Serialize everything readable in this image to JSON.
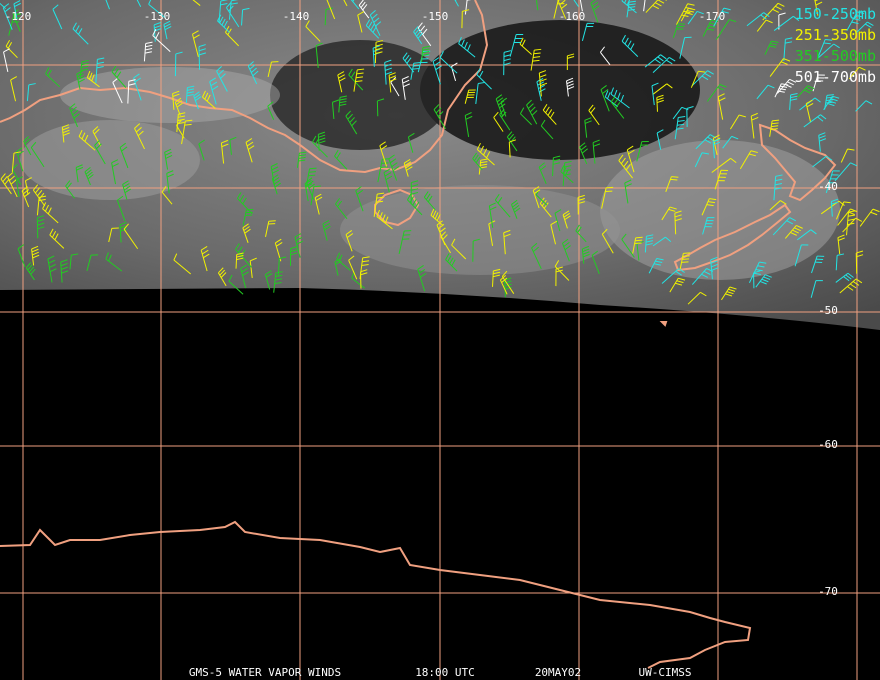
{
  "map": {
    "longitude_labels": [
      "-120",
      "-130",
      "-140",
      "-150",
      "-160",
      "-170"
    ],
    "latitude_labels": [
      "-40",
      "-50",
      "-60",
      "-70"
    ],
    "legend": [
      {
        "label": "150-250mb",
        "color": "#22e5e5"
      },
      {
        "label": "251-350mb",
        "color": "#f2f200"
      },
      {
        "label": "351-500mb",
        "color": "#22cc22"
      },
      {
        "label": "501-700mb",
        "color": "#ffffff"
      }
    ],
    "footer": [
      "GMS-5 WATER VAPOR WINDS",
      "18:00 UTC",
      "20MAY02",
      "UW-CIMSS"
    ]
  }
}
